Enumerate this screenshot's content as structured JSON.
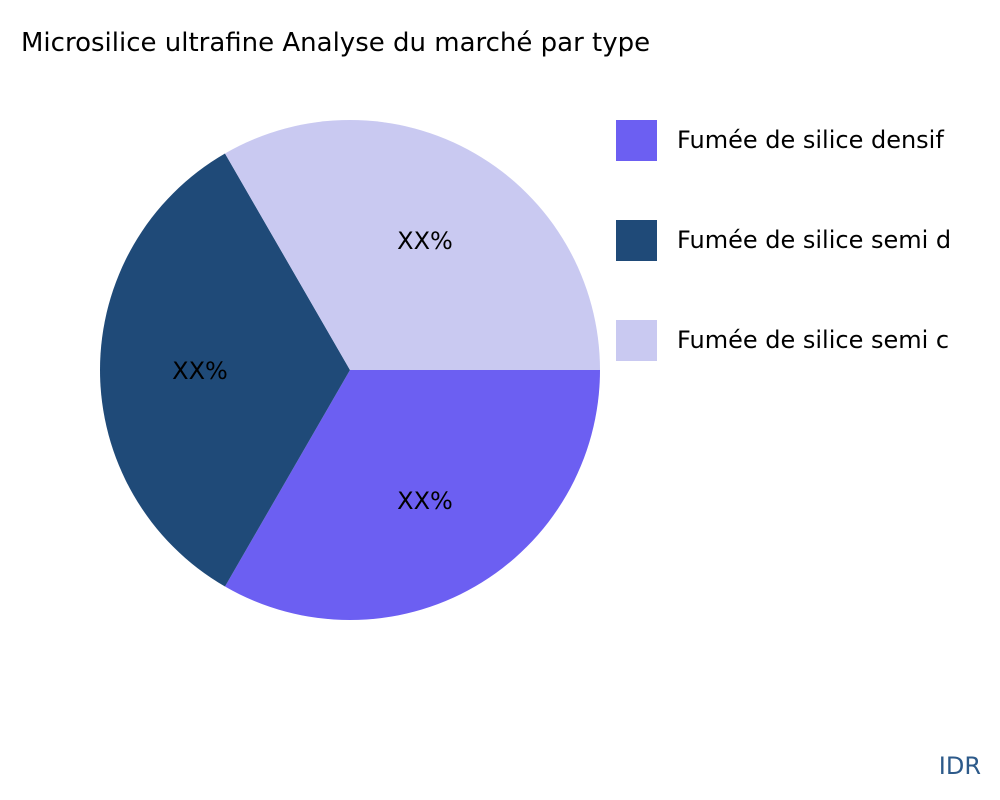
{
  "chart_data": {
    "type": "pie",
    "title": "Microsilice ultrafine Analyse du marché par type",
    "slices": [
      {
        "name": "Fumée de silice densif",
        "value": 33.33,
        "label": "XX%",
        "color": "#6c5ff2"
      },
      {
        "name": "Fumée de silice semi d",
        "value": 33.33,
        "label": "XX%",
        "color": "#1f4a78"
      },
      {
        "name": "Fumée de silice semi c",
        "value": 33.33,
        "label": "XX%",
        "color": "#c9c9f1"
      }
    ],
    "legend_position": "right"
  },
  "watermark": "IDR"
}
